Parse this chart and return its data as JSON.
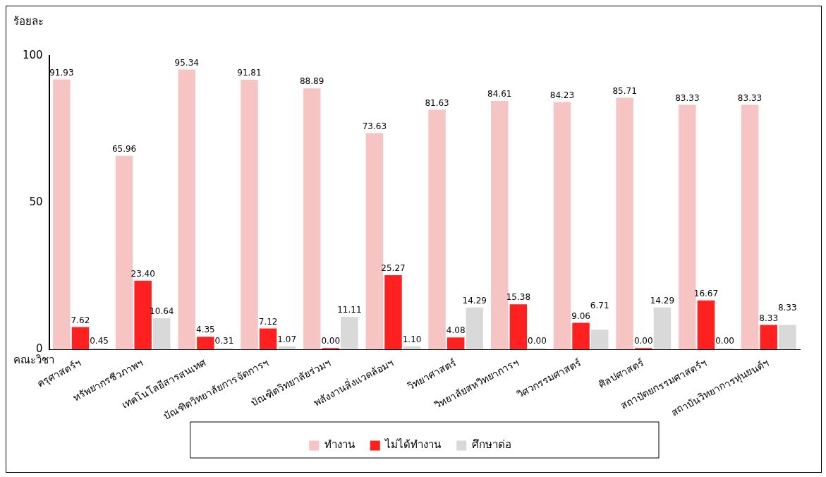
{
  "chart_data": {
    "type": "bar",
    "ylabel": "ร้อยละ",
    "xlabel": "คณะวิชา",
    "categories": [
      "ครุศาสตร์ฯ",
      "ทรัพยากรชีวภาพฯ",
      "เทคโนโลยีสารสนเทศ",
      "บัณฑิตวิทยาลัยการจัดการฯ",
      "บัณฑิตวิทยาลัยร่วมฯ",
      "พลังงานสิ่งแวดล้อมฯ",
      "วิทยาศาสตร์",
      "วิทยาลัยสหวิทยาการฯ",
      "วิศวกรรมศาสตร์",
      "ศิลปศาสตร์",
      "สถาปัตยกรรมศาสตร์ฯ",
      "สถาบันวิทยาการหุ่นยนต์ฯ"
    ],
    "series": [
      {
        "name": "ทำงาน",
        "color": "#f7c4c4",
        "values": [
          91.93,
          65.96,
          95.34,
          91.81,
          88.89,
          73.63,
          81.63,
          84.61,
          84.23,
          85.71,
          83.33,
          83.33
        ],
        "value_labels": [
          "91.93",
          "65.96",
          "95.34",
          "91.81",
          "88.89",
          "73.63",
          "81.63",
          "84.61",
          "84.23",
          "85.71",
          "83.33",
          "83.33"
        ]
      },
      {
        "name": "ไม่ได้ทำงาน",
        "color": "#ff2020",
        "values": [
          7.62,
          23.4,
          4.35,
          7.12,
          0,
          25.27,
          4.08,
          15.38,
          9.06,
          0,
          16.67,
          8.33
        ],
        "value_labels": [
          "7.62",
          "23.40",
          "4.35",
          "7.12",
          "0.00",
          "25.27",
          "4.08",
          "15.38",
          "9.06",
          "0.00",
          "16.67",
          "8.33"
        ]
      },
      {
        "name": "ศึกษาต่อ",
        "color": "#d9d9d9",
        "values": [
          0.45,
          10.64,
          0.31,
          1.07,
          11.11,
          1.1,
          14.29,
          0,
          6.71,
          14.29,
          0,
          8.33
        ],
        "value_labels": [
          "0.45",
          "10.64",
          "0.31",
          "1.07",
          "11.11",
          "1.10",
          "14.29",
          "0.00",
          "6.71",
          "14.29",
          "0.00",
          "8.33"
        ]
      }
    ],
    "ylim": [
      0,
      100
    ],
    "yticks": [
      0,
      50,
      100
    ],
    "grid": false,
    "legend": "bottom"
  }
}
